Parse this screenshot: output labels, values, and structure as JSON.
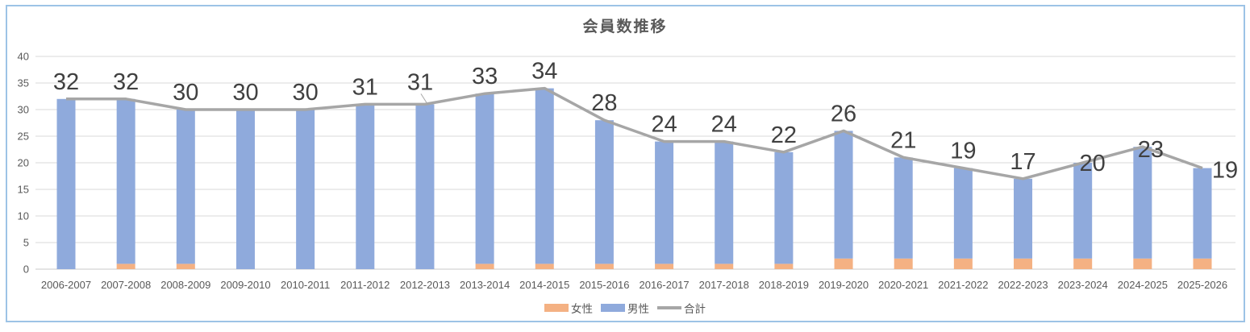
{
  "chart_data": {
    "type": "combo-stacked-bar-line",
    "title": "会員数推移",
    "categories": [
      "2006-2007",
      "2007-2008",
      "2008-2009",
      "2009-2010",
      "2010-2011",
      "2011-2012",
      "2012-2013",
      "2013-2014",
      "2014-2015",
      "2015-2016",
      "2016-2017",
      "2017-2018",
      "2018-2019",
      "2019-2020",
      "2020-2021",
      "2021-2022",
      "2022-2023",
      "2023-2024",
      "2024-2025",
      "2025-2026"
    ],
    "series": [
      {
        "name": "女性",
        "type": "bar",
        "stacked": true,
        "color": "#F4B183",
        "values": [
          0,
          1,
          1,
          0,
          0,
          0,
          0,
          1,
          1,
          1,
          1,
          1,
          1,
          2,
          2,
          2,
          2,
          2,
          2,
          2
        ]
      },
      {
        "name": "男性",
        "type": "bar",
        "stacked": true,
        "color": "#8FAADC",
        "values": [
          32,
          31,
          29,
          30,
          30,
          31,
          31,
          32,
          33,
          27,
          23,
          23,
          21,
          24,
          19,
          17,
          15,
          18,
          21,
          17
        ]
      },
      {
        "name": "合計",
        "type": "line",
        "color": "#A6A6A6",
        "show_data_labels": true,
        "values": [
          32,
          32,
          30,
          30,
          30,
          31,
          31,
          33,
          34,
          28,
          24,
          24,
          22,
          26,
          21,
          19,
          17,
          20,
          23,
          19
        ]
      }
    ],
    "ylim": [
      0,
      40
    ],
    "ytick_interval": 5,
    "yticks": [
      0,
      5,
      10,
      15,
      20,
      25,
      30,
      35,
      40
    ],
    "grid": true,
    "legend_position": "bottom"
  },
  "styles": {
    "border_color": "#9DC3E6",
    "gridline_color": "#D9D9D9",
    "axis_line_color": "#C9C9C9",
    "title_color": "#595959",
    "axis_text_color": "#595959",
    "data_label_color": "#404040",
    "background": "#FFFFFF"
  }
}
